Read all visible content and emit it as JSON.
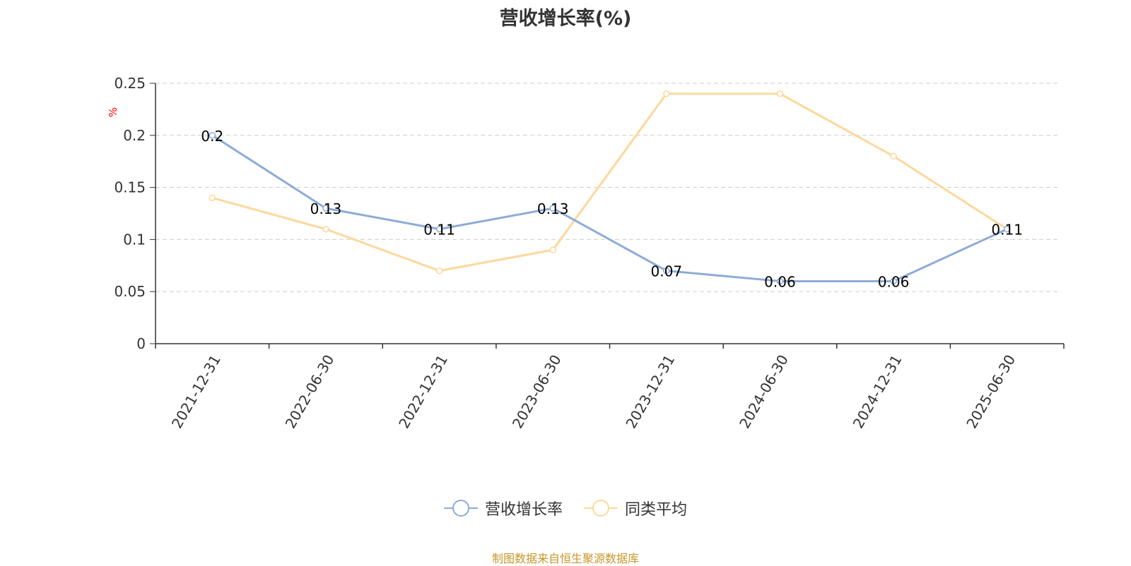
{
  "title": "营收增长率(%)",
  "source_note": "制图数据来自恒生聚源数据库",
  "colors": {
    "series1": "#8eabd8",
    "series2": "#fdd89a",
    "axis": "#333333",
    "grid": "#cccccc",
    "unit": "#ff0000",
    "source": "#c8962a"
  },
  "chart_data": {
    "type": "line",
    "title": "营收增长率(%)",
    "ylabel": "%",
    "xlabel": "",
    "ylim": [
      0,
      0.25
    ],
    "y_ticks": [
      "0",
      "0.05",
      "0.1",
      "0.15",
      "0.2",
      "0.25"
    ],
    "grid": true,
    "legend_position": "bottom",
    "categories": [
      "2021-12-31",
      "2022-06-30",
      "2022-12-31",
      "2023-06-30",
      "2023-12-31",
      "2024-06-30",
      "2024-12-31",
      "2025-06-30"
    ],
    "series": [
      {
        "name": "营收增长率",
        "values": [
          0.2,
          0.13,
          0.11,
          0.13,
          0.07,
          0.06,
          0.06,
          0.11
        ],
        "labels": [
          "0.2",
          "0.13",
          "0.11",
          "0.13",
          "0.07",
          "0.06",
          "0.06",
          "0.11"
        ]
      },
      {
        "name": "同类平均",
        "values": [
          0.14,
          0.11,
          0.07,
          0.09,
          0.24,
          0.24,
          0.18,
          0.11
        ]
      }
    ]
  }
}
